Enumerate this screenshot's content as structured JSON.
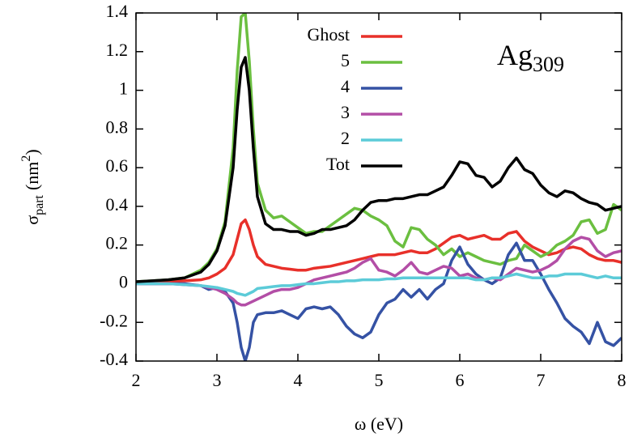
{
  "chart_data": {
    "type": "line",
    "xlabel": "ω (eV)",
    "ylabel": {
      "base": "σ",
      "sub": "part",
      "unit": "(nm",
      "sup": "2",
      "close": ")"
    },
    "annotation": {
      "base": "Ag",
      "sub": "309"
    },
    "xlim": [
      2,
      8
    ],
    "xticks": [
      2,
      3,
      4,
      5,
      6,
      7,
      8
    ],
    "ylim": [
      -0.4,
      1.4
    ],
    "yticks": [
      -0.4,
      -0.2,
      0,
      0.2,
      0.4,
      0.6,
      0.8,
      1,
      1.2,
      1.4
    ],
    "x": [
      2,
      2.2,
      2.4,
      2.6,
      2.8,
      2.9,
      3,
      3.1,
      3.2,
      3.25,
      3.3,
      3.35,
      3.4,
      3.45,
      3.5,
      3.6,
      3.7,
      3.8,
      3.9,
      4,
      4.1,
      4.2,
      4.3,
      4.4,
      4.5,
      4.6,
      4.7,
      4.8,
      4.9,
      5,
      5.1,
      5.2,
      5.3,
      5.4,
      5.5,
      5.6,
      5.7,
      5.8,
      5.9,
      6,
      6.1,
      6.2,
      6.3,
      6.4,
      6.5,
      6.6,
      6.7,
      6.8,
      6.9,
      7,
      7.1,
      7.2,
      7.3,
      7.4,
      7.5,
      7.6,
      7.7,
      7.8,
      7.9,
      8
    ],
    "series": [
      {
        "name": "Ghost",
        "color": "#e8302a",
        "values": [
          0.005,
          0.01,
          0.01,
          0.015,
          0.02,
          0.03,
          0.05,
          0.08,
          0.15,
          0.23,
          0.31,
          0.33,
          0.28,
          0.2,
          0.14,
          0.1,
          0.09,
          0.08,
          0.075,
          0.07,
          0.07,
          0.08,
          0.085,
          0.09,
          0.1,
          0.11,
          0.12,
          0.13,
          0.14,
          0.15,
          0.15,
          0.15,
          0.16,
          0.17,
          0.16,
          0.16,
          0.18,
          0.21,
          0.24,
          0.25,
          0.23,
          0.24,
          0.25,
          0.23,
          0.23,
          0.26,
          0.27,
          0.22,
          0.19,
          0.17,
          0.15,
          0.16,
          0.18,
          0.19,
          0.18,
          0.15,
          0.13,
          0.12,
          0.12,
          0.11
        ]
      },
      {
        "name": "5",
        "color": "#6bbf40",
        "values": [
          0.01,
          0.015,
          0.02,
          0.03,
          0.07,
          0.11,
          0.18,
          0.32,
          0.7,
          1.1,
          1.38,
          1.4,
          1.15,
          0.8,
          0.52,
          0.38,
          0.34,
          0.35,
          0.32,
          0.29,
          0.26,
          0.27,
          0.27,
          0.3,
          0.33,
          0.36,
          0.39,
          0.38,
          0.35,
          0.33,
          0.3,
          0.22,
          0.19,
          0.29,
          0.28,
          0.23,
          0.2,
          0.15,
          0.18,
          0.14,
          0.16,
          0.14,
          0.12,
          0.11,
          0.1,
          0.12,
          0.13,
          0.2,
          0.17,
          0.14,
          0.16,
          0.2,
          0.22,
          0.25,
          0.32,
          0.33,
          0.26,
          0.28,
          0.41,
          0.38
        ]
      },
      {
        "name": "4",
        "color": "#3552a4",
        "values": [
          0,
          0,
          0,
          0,
          -0.01,
          -0.03,
          -0.02,
          -0.04,
          -0.1,
          -0.2,
          -0.33,
          -0.4,
          -0.33,
          -0.2,
          -0.16,
          -0.15,
          -0.15,
          -0.14,
          -0.16,
          -0.18,
          -0.13,
          -0.12,
          -0.13,
          -0.12,
          -0.16,
          -0.22,
          -0.26,
          -0.28,
          -0.25,
          -0.16,
          -0.1,
          -0.08,
          -0.03,
          -0.07,
          -0.03,
          -0.08,
          -0.03,
          0,
          0.12,
          0.19,
          0.1,
          0.05,
          0.02,
          0,
          0.03,
          0.15,
          0.21,
          0.12,
          0.12,
          0.05,
          -0.03,
          -0.1,
          -0.18,
          -0.22,
          -0.25,
          -0.31,
          -0.2,
          -0.3,
          -0.32,
          -0.28
        ]
      },
      {
        "name": "3",
        "color": "#b34ea6",
        "values": [
          0,
          0,
          0,
          -0.005,
          -0.01,
          -0.02,
          -0.03,
          -0.05,
          -0.08,
          -0.1,
          -0.11,
          -0.11,
          -0.1,
          -0.09,
          -0.08,
          -0.06,
          -0.04,
          -0.03,
          -0.03,
          -0.02,
          0,
          0.02,
          0.03,
          0.04,
          0.05,
          0.06,
          0.08,
          0.11,
          0.13,
          0.07,
          0.06,
          0.04,
          0.07,
          0.11,
          0.06,
          0.05,
          0.07,
          0.09,
          0.08,
          0.04,
          0.05,
          0.03,
          0.02,
          0.03,
          0.02,
          0.05,
          0.08,
          0.07,
          0.06,
          0.07,
          0.09,
          0.12,
          0.18,
          0.22,
          0.24,
          0.23,
          0.17,
          0.14,
          0.16,
          0.17
        ]
      },
      {
        "name": "2",
        "color": "#5ccbd8",
        "values": [
          0,
          0,
          0,
          -0.005,
          -0.01,
          -0.015,
          -0.02,
          -0.03,
          -0.04,
          -0.05,
          -0.055,
          -0.06,
          -0.05,
          -0.04,
          -0.025,
          -0.02,
          -0.015,
          -0.01,
          -0.01,
          -0.005,
          0,
          0,
          0.005,
          0.01,
          0.01,
          0.015,
          0.015,
          0.02,
          0.02,
          0.02,
          0.025,
          0.025,
          0.03,
          0.03,
          0.03,
          0.03,
          0.03,
          0.03,
          0.03,
          0.03,
          0.03,
          0.02,
          0.02,
          0.03,
          0.03,
          0.04,
          0.05,
          0.04,
          0.03,
          0.03,
          0.04,
          0.04,
          0.05,
          0.05,
          0.05,
          0.04,
          0.03,
          0.04,
          0.03,
          0.03
        ]
      },
      {
        "name": "Tot",
        "color": "#000000",
        "values": [
          0.01,
          0.015,
          0.02,
          0.03,
          0.06,
          0.1,
          0.17,
          0.3,
          0.6,
          0.9,
          1.12,
          1.17,
          1.0,
          0.7,
          0.45,
          0.31,
          0.28,
          0.28,
          0.27,
          0.27,
          0.25,
          0.26,
          0.28,
          0.28,
          0.29,
          0.3,
          0.33,
          0.38,
          0.42,
          0.43,
          0.43,
          0.44,
          0.44,
          0.45,
          0.46,
          0.46,
          0.48,
          0.5,
          0.56,
          0.63,
          0.62,
          0.56,
          0.55,
          0.5,
          0.53,
          0.6,
          0.65,
          0.59,
          0.57,
          0.51,
          0.47,
          0.45,
          0.48,
          0.47,
          0.44,
          0.42,
          0.41,
          0.38,
          0.39,
          0.4
        ]
      }
    ]
  }
}
